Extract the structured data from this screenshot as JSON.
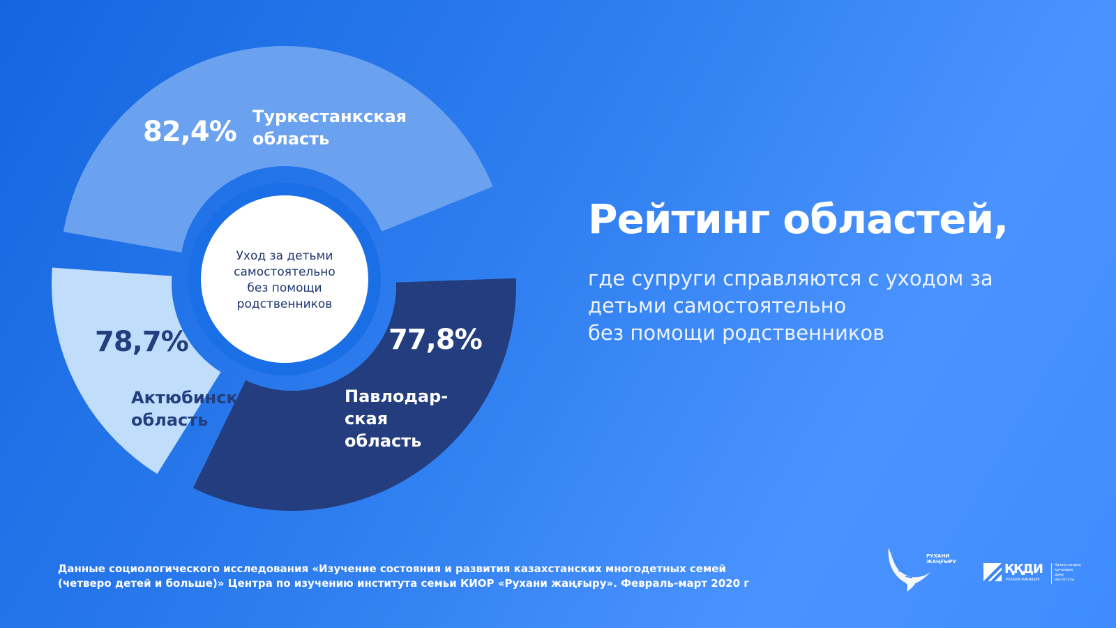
{
  "chart_data": {
    "type": "pie",
    "center_label": [
      "Уход за детьми",
      "самостоятельно",
      "без помощи",
      "родственников"
    ],
    "slices": [
      {
        "value_label": "82,4%",
        "value": 82.4,
        "name": [
          "Туркестанкская",
          "область"
        ],
        "color": "#6aa2f0"
      },
      {
        "value_label": "77,8%",
        "value": 77.8,
        "name": [
          "Павлодар-",
          "ская",
          "область"
        ],
        "color": "#233d7e"
      },
      {
        "value_label": "78,7%",
        "value": 78.7,
        "name": [
          "Актюбинская",
          "область"
        ],
        "color": "#c0defb"
      }
    ]
  },
  "heading": {
    "title": "Рейтинг областей,",
    "subtitle_lines": [
      "где супруги справляются с уходом за",
      "детьми самостоятельно",
      "без помощи родственников"
    ]
  },
  "source": {
    "lines": [
      "Данные социологического исследования «Изучение состояния и развития казахстанских многодетных семей",
      "(четверо детей и больше)» Центра по изучению института семьи КИОР «Рухани жаңғыру». Февраль-март 2020 г"
    ]
  },
  "logos": {
    "rukhani": {
      "line1": "РУХАНИ",
      "line2": "ЖАҢҒЫРУ"
    },
    "kkdi": {
      "name": "ҚҚДИ",
      "sub": "РУХАНИ ЖАҢҒЫРУ",
      "small_lines": [
        "Қазақстандық",
        "қоғамдық",
        "даму",
        "институты"
      ]
    }
  }
}
